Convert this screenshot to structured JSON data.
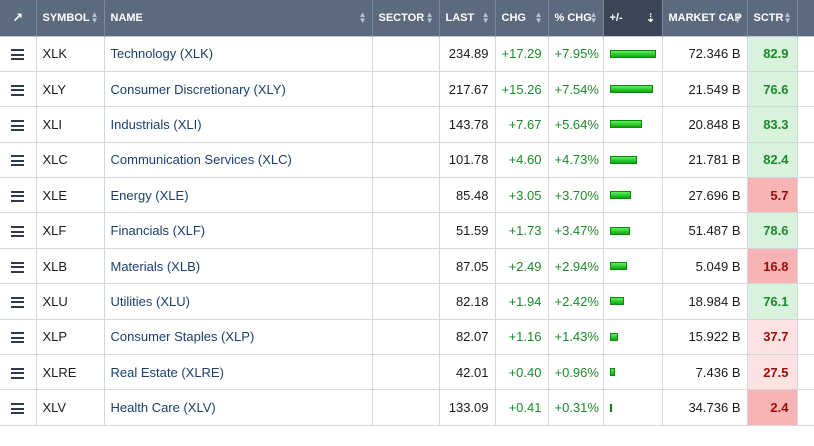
{
  "header": {
    "external_icon": "external-link-icon",
    "symbol": "SYMBOL",
    "name": "NAME",
    "sector": "SECTOR",
    "last": "LAST",
    "chg": "CHG",
    "pct_chg": "% CHG",
    "plus_minus": "+/-",
    "market_cap": "MARKET CAP",
    "sctr": "SCTR"
  },
  "colors": {
    "header_bg": "#5b6a7f",
    "positive_text": "#1b8a2a",
    "bar_green": "#18c018",
    "sctr_high_bg": "#d8f2dc",
    "sctr_high_text": "#1b8a2a",
    "sctr_low_bg": "#f8b4b4",
    "sctr_mid_bg": "#fde2e2",
    "sctr_low_text": "#9e0b0b"
  },
  "rows": [
    {
      "symbol": "XLK",
      "name": "Technology (XLK)",
      "sector": "",
      "last": "234.89",
      "chg": "+17.29",
      "pct_chg": "+7.95%",
      "pct_value": 7.95,
      "market_cap": "72.346 B",
      "sctr": "82.9",
      "sctr_level": "high"
    },
    {
      "symbol": "XLY",
      "name": "Consumer Discretionary (XLY)",
      "sector": "",
      "last": "217.67",
      "chg": "+15.26",
      "pct_chg": "+7.54%",
      "pct_value": 7.54,
      "market_cap": "21.549 B",
      "sctr": "76.6",
      "sctr_level": "high"
    },
    {
      "symbol": "XLI",
      "name": "Industrials (XLI)",
      "sector": "",
      "last": "143.78",
      "chg": "+7.67",
      "pct_chg": "+5.64%",
      "pct_value": 5.64,
      "market_cap": "20.848 B",
      "sctr": "83.3",
      "sctr_level": "high"
    },
    {
      "symbol": "XLC",
      "name": "Communication Services (XLC)",
      "sector": "",
      "last": "101.78",
      "chg": "+4.60",
      "pct_chg": "+4.73%",
      "pct_value": 4.73,
      "market_cap": "21.781 B",
      "sctr": "82.4",
      "sctr_level": "high"
    },
    {
      "symbol": "XLE",
      "name": "Energy (XLE)",
      "sector": "",
      "last": "85.48",
      "chg": "+3.05",
      "pct_chg": "+3.70%",
      "pct_value": 3.7,
      "market_cap": "27.696 B",
      "sctr": "5.7",
      "sctr_level": "low"
    },
    {
      "symbol": "XLF",
      "name": "Financials (XLF)",
      "sector": "",
      "last": "51.59",
      "chg": "+1.73",
      "pct_chg": "+3.47%",
      "pct_value": 3.47,
      "market_cap": "51.487 B",
      "sctr": "78.6",
      "sctr_level": "high"
    },
    {
      "symbol": "XLB",
      "name": "Materials (XLB)",
      "sector": "",
      "last": "87.05",
      "chg": "+2.49",
      "pct_chg": "+2.94%",
      "pct_value": 2.94,
      "market_cap": "5.049 B",
      "sctr": "16.8",
      "sctr_level": "low"
    },
    {
      "symbol": "XLU",
      "name": "Utilities (XLU)",
      "sector": "",
      "last": "82.18",
      "chg": "+1.94",
      "pct_chg": "+2.42%",
      "pct_value": 2.42,
      "market_cap": "18.984 B",
      "sctr": "76.1",
      "sctr_level": "high"
    },
    {
      "symbol": "XLP",
      "name": "Consumer Staples (XLP)",
      "sector": "",
      "last": "82.07",
      "chg": "+1.16",
      "pct_chg": "+1.43%",
      "pct_value": 1.43,
      "market_cap": "15.922 B",
      "sctr": "37.7",
      "sctr_level": "mid"
    },
    {
      "symbol": "XLRE",
      "name": "Real Estate (XLRE)",
      "sector": "",
      "last": "42.01",
      "chg": "+0.40",
      "pct_chg": "+0.96%",
      "pct_value": 0.96,
      "market_cap": "7.436 B",
      "sctr": "27.5",
      "sctr_level": "mid"
    },
    {
      "symbol": "XLV",
      "name": "Health Care (XLV)",
      "sector": "",
      "last": "133.09",
      "chg": "+0.41",
      "pct_chg": "+0.31%",
      "pct_value": 0.31,
      "market_cap": "34.736 B",
      "sctr": "2.4",
      "sctr_level": "low"
    }
  ]
}
